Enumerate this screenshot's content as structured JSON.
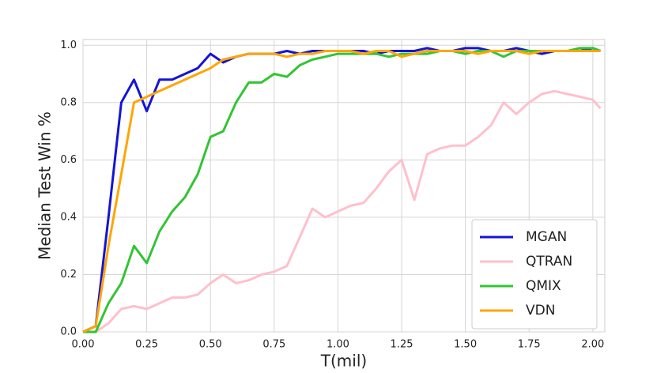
{
  "chart_data": {
    "type": "line",
    "xlabel": "T(mil)",
    "ylabel": "Median Test Win %",
    "x": [
      0,
      0.05,
      0.1,
      0.15,
      0.2,
      0.25,
      0.3,
      0.35,
      0.4,
      0.45,
      0.5,
      0.55,
      0.6,
      0.65,
      0.7,
      0.75,
      0.8,
      0.85,
      0.9,
      0.95,
      1.0,
      1.05,
      1.1,
      1.15,
      1.2,
      1.25,
      1.3,
      1.35,
      1.4,
      1.45,
      1.5,
      1.55,
      1.6,
      1.65,
      1.7,
      1.75,
      1.8,
      1.85,
      1.9,
      1.95,
      2.0,
      2.03
    ],
    "series": [
      {
        "name": "MGAN",
        "color": "#1414d8",
        "values": [
          0,
          0.02,
          0.4,
          0.8,
          0.88,
          0.77,
          0.88,
          0.88,
          0.9,
          0.92,
          0.97,
          0.94,
          0.96,
          0.97,
          0.97,
          0.97,
          0.98,
          0.97,
          0.98,
          0.98,
          0.98,
          0.98,
          0.98,
          0.97,
          0.98,
          0.98,
          0.98,
          0.99,
          0.98,
          0.98,
          0.99,
          0.99,
          0.98,
          0.98,
          0.99,
          0.98,
          0.97,
          0.98,
          0.98,
          0.98,
          0.99,
          0.98
        ]
      },
      {
        "name": "QTRAN",
        "color": "#ffc0cb",
        "values": [
          0,
          0,
          0.03,
          0.08,
          0.09,
          0.08,
          0.1,
          0.12,
          0.12,
          0.13,
          0.17,
          0.2,
          0.17,
          0.18,
          0.2,
          0.21,
          0.23,
          0.33,
          0.43,
          0.4,
          0.42,
          0.44,
          0.45,
          0.5,
          0.56,
          0.6,
          0.46,
          0.62,
          0.64,
          0.65,
          0.65,
          0.68,
          0.72,
          0.8,
          0.76,
          0.8,
          0.83,
          0.84,
          0.83,
          0.82,
          0.81,
          0.78
        ]
      },
      {
        "name": "QMIX",
        "color": "#33c433",
        "values": [
          0,
          0,
          0.1,
          0.17,
          0.3,
          0.24,
          0.35,
          0.42,
          0.47,
          0.55,
          0.68,
          0.7,
          0.8,
          0.87,
          0.87,
          0.9,
          0.89,
          0.93,
          0.95,
          0.96,
          0.97,
          0.97,
          0.97,
          0.97,
          0.96,
          0.97,
          0.97,
          0.97,
          0.98,
          0.98,
          0.97,
          0.98,
          0.98,
          0.96,
          0.98,
          0.98,
          0.98,
          0.98,
          0.98,
          0.99,
          0.99,
          0.98
        ]
      },
      {
        "name": "VDN",
        "color": "#ffa500",
        "values": [
          0,
          0.02,
          0.3,
          0.55,
          0.8,
          0.82,
          0.84,
          0.86,
          0.88,
          0.9,
          0.92,
          0.95,
          0.96,
          0.97,
          0.97,
          0.97,
          0.96,
          0.97,
          0.97,
          0.98,
          0.98,
          0.98,
          0.97,
          0.98,
          0.98,
          0.96,
          0.97,
          0.98,
          0.98,
          0.98,
          0.98,
          0.97,
          0.98,
          0.98,
          0.98,
          0.97,
          0.98,
          0.98,
          0.98,
          0.98,
          0.98,
          0.98
        ]
      }
    ],
    "xlim": [
      0,
      2.047
    ],
    "ylim": [
      0,
      1.02
    ],
    "xticks": [
      {
        "value": 0,
        "label": "0.00"
      },
      {
        "value": 0.25,
        "label": "0.25"
      },
      {
        "value": 0.5,
        "label": "0.50"
      },
      {
        "value": 0.75,
        "label": "0.75"
      },
      {
        "value": 1,
        "label": "1.00"
      },
      {
        "value": 1.25,
        "label": "1.25"
      },
      {
        "value": 1.5,
        "label": "1.50"
      },
      {
        "value": 1.75,
        "label": "1.75"
      },
      {
        "value": 2,
        "label": "2.00"
      }
    ],
    "yticks": [
      {
        "value": 0,
        "label": "0.0"
      },
      {
        "value": 0.2,
        "label": "0.2"
      },
      {
        "value": 0.4,
        "label": "0.4"
      },
      {
        "value": 0.6,
        "label": "0.6"
      },
      {
        "value": 0.8,
        "label": "0.8"
      },
      {
        "value": 1,
        "label": "1.0"
      }
    ],
    "grid": true,
    "legend": "lower right"
  }
}
